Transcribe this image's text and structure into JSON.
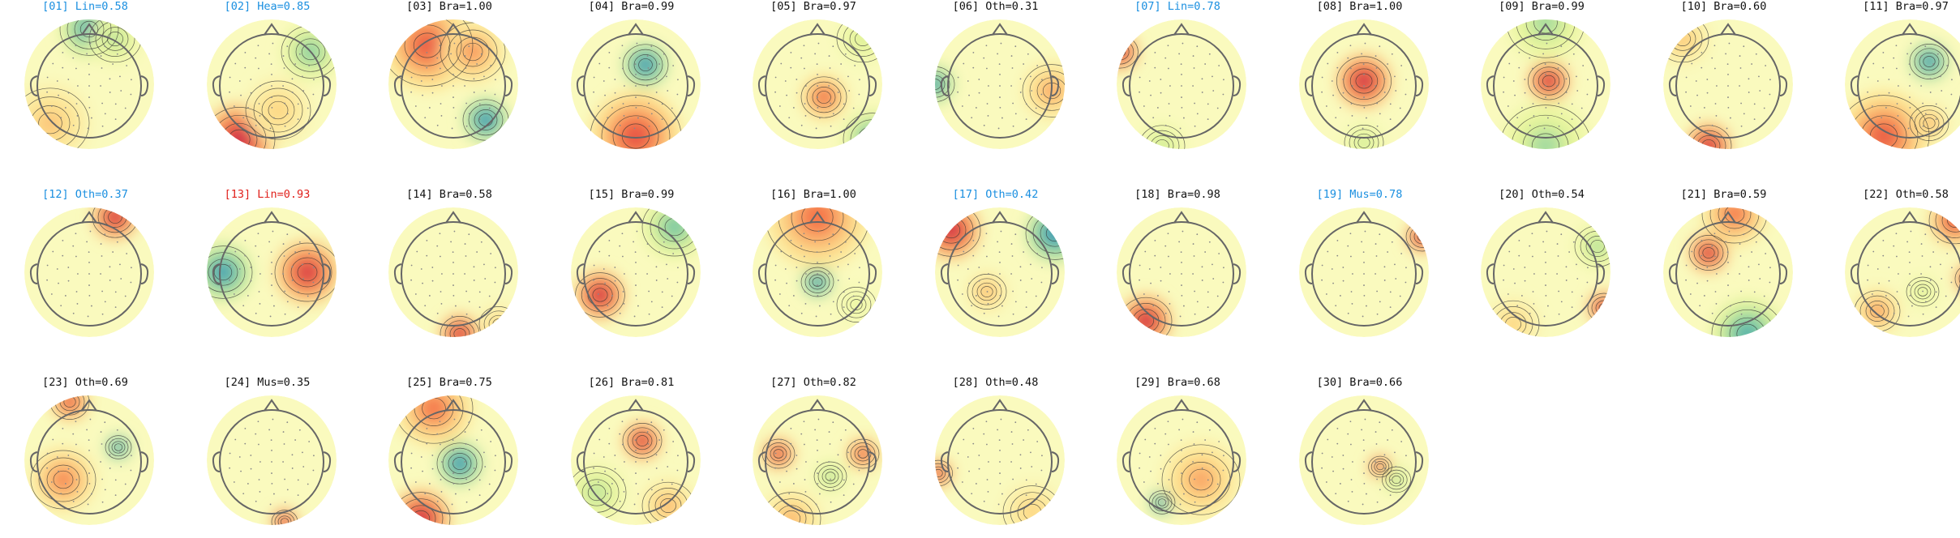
{
  "colors": {
    "normal": "#111111",
    "flagged": "#1a8fe0",
    "alert": "#e0201b"
  },
  "components": [
    {
      "label": "[01] Lin=0.58",
      "status": "flagged",
      "blobs": [
        [
          0,
          -0.85,
          0.45,
          -0.8
        ],
        [
          0.4,
          -0.7,
          0.4,
          -0.4
        ],
        [
          -0.6,
          0.6,
          0.6,
          0.35
        ]
      ]
    },
    {
      "label": "[02] Hea=0.85",
      "status": "flagged",
      "blobs": [
        [
          -0.5,
          0.85,
          0.55,
          1.0
        ],
        [
          0.6,
          -0.5,
          0.45,
          -0.55
        ],
        [
          0.1,
          0.4,
          0.5,
          0.3
        ]
      ]
    },
    {
      "label": "[03] Bra=1.00",
      "status": "normal",
      "blobs": [
        [
          0.5,
          0.55,
          0.35,
          -1.0
        ],
        [
          -0.4,
          -0.6,
          0.7,
          0.7
        ],
        [
          0.3,
          -0.5,
          0.5,
          0.5
        ]
      ]
    },
    {
      "label": "[04] Bra=0.99",
      "status": "normal",
      "blobs": [
        [
          0.15,
          -0.3,
          0.35,
          -1.0
        ],
        [
          0,
          0.8,
          0.7,
          0.75
        ]
      ]
    },
    {
      "label": "[05] Bra=0.97",
      "status": "normal",
      "blobs": [
        [
          0.1,
          0.2,
          0.35,
          0.7
        ],
        [
          0.85,
          0.85,
          0.45,
          -0.7
        ],
        [
          0.7,
          -0.7,
          0.4,
          -0.3
        ]
      ]
    },
    {
      "label": "[06] Oth=0.31",
      "status": "normal",
      "blobs": [
        [
          -1.0,
          0,
          0.3,
          -0.9
        ],
        [
          0.8,
          0.1,
          0.45,
          0.45
        ]
      ]
    },
    {
      "label": "[07] Lin=0.78",
      "status": "flagged",
      "blobs": [
        [
          -0.95,
          -0.5,
          0.28,
          1.0
        ],
        [
          -0.3,
          0.95,
          0.35,
          -0.35
        ]
      ]
    },
    {
      "label": "[08] Bra=1.00",
      "status": "normal",
      "blobs": [
        [
          0,
          -0.05,
          0.42,
          1.0
        ],
        [
          0,
          0.9,
          0.3,
          -0.35
        ]
      ]
    },
    {
      "label": "[09] Bra=0.99",
      "status": "normal",
      "blobs": [
        [
          0.05,
          -0.05,
          0.32,
          1.0
        ],
        [
          0,
          0.95,
          0.7,
          -0.45
        ],
        [
          0,
          -0.95,
          0.6,
          -0.45
        ]
      ]
    },
    {
      "label": "[10] Bra=0.60",
      "status": "normal",
      "blobs": [
        [
          -0.3,
          0.95,
          0.35,
          1.0
        ],
        [
          -0.7,
          -0.7,
          0.4,
          0.35
        ]
      ]
    },
    {
      "label": "[11] Bra=0.97",
      "status": "normal",
      "blobs": [
        [
          0.3,
          -0.35,
          0.3,
          -1.0
        ],
        [
          -0.4,
          0.8,
          0.7,
          0.7
        ],
        [
          0.3,
          0.6,
          0.3,
          0.4
        ]
      ]
    },
    {
      "label": "[12] Oth=0.37",
      "status": "flagged",
      "blobs": [
        [
          0.4,
          -0.85,
          0.35,
          1.0
        ]
      ]
    },
    {
      "label": "[13] Lin=0.93",
      "status": "alert",
      "blobs": [
        [
          0.55,
          0,
          0.5,
          0.9
        ],
        [
          -0.75,
          0,
          0.45,
          -0.9
        ]
      ]
    },
    {
      "label": "[14] Bra=0.58",
      "status": "normal",
      "blobs": [
        [
          0.1,
          0.95,
          0.3,
          1.0
        ],
        [
          0.7,
          0.8,
          0.3,
          0.3
        ]
      ]
    },
    {
      "label": "[15] Bra=0.99",
      "status": "normal",
      "blobs": [
        [
          -0.55,
          0.35,
          0.38,
          1.0
        ],
        [
          0.6,
          -0.7,
          0.5,
          -0.6
        ]
      ]
    },
    {
      "label": "[16] Bra=1.00",
      "status": "normal",
      "blobs": [
        [
          0,
          0.15,
          0.25,
          -1.0
        ],
        [
          0,
          -0.85,
          0.8,
          0.6
        ],
        [
          0.6,
          0.5,
          0.3,
          -0.2
        ]
      ]
    },
    {
      "label": "[17] Oth=0.42",
      "status": "flagged",
      "blobs": [
        [
          0.85,
          -0.6,
          0.45,
          -1.0
        ],
        [
          -0.75,
          -0.65,
          0.45,
          1.0
        ],
        [
          -0.2,
          0.3,
          0.3,
          0.4
        ]
      ]
    },
    {
      "label": "[18] Bra=0.98",
      "status": "normal",
      "blobs": [
        [
          -0.55,
          0.75,
          0.4,
          1.0
        ]
      ]
    },
    {
      "label": "[19] Mus=0.78",
      "status": "flagged",
      "blobs": [
        [
          0.9,
          -0.55,
          0.25,
          1.0
        ]
      ]
    },
    {
      "label": "[20] Oth=0.54",
      "status": "normal",
      "blobs": [
        [
          0.9,
          0.55,
          0.25,
          1.0
        ],
        [
          0.8,
          -0.4,
          0.35,
          -0.45
        ],
        [
          -0.5,
          0.8,
          0.4,
          0.3
        ]
      ]
    },
    {
      "label": "[21] Bra=0.59",
      "status": "normal",
      "blobs": [
        [
          -0.3,
          -0.3,
          0.3,
          1.0
        ],
        [
          0.3,
          0.95,
          0.55,
          -0.75
        ],
        [
          0.1,
          -0.9,
          0.5,
          0.6
        ]
      ]
    },
    {
      "label": "[22] Oth=0.58",
      "status": "normal",
      "blobs": [
        [
          0.95,
          0.1,
          0.25,
          1.0
        ],
        [
          0.7,
          -0.8,
          0.4,
          0.8
        ],
        [
          -0.5,
          0.6,
          0.35,
          0.5
        ],
        [
          0.2,
          0.3,
          0.25,
          -0.3
        ]
      ]
    },
    {
      "label": "[23] Oth=0.69",
      "status": "normal",
      "blobs": [
        [
          0.45,
          -0.2,
          0.2,
          -1.0
        ],
        [
          -0.3,
          -0.9,
          0.3,
          0.8
        ],
        [
          -0.4,
          0.3,
          0.5,
          0.55
        ]
      ]
    },
    {
      "label": "[24] Mus=0.35",
      "status": "normal",
      "blobs": [
        [
          0.2,
          0.95,
          0.2,
          1.0
        ]
      ]
    },
    {
      "label": "[25] Bra=0.75",
      "status": "normal",
      "blobs": [
        [
          0.1,
          0.05,
          0.35,
          -1.0
        ],
        [
          -0.5,
          0.9,
          0.45,
          1.0
        ],
        [
          -0.3,
          -0.8,
          0.6,
          0.6
        ]
      ]
    },
    {
      "label": "[26] Bra=0.81",
      "status": "normal",
      "blobs": [
        [
          0.1,
          -0.3,
          0.3,
          0.95
        ],
        [
          -0.6,
          0.5,
          0.45,
          -0.4
        ],
        [
          0.5,
          0.7,
          0.4,
          0.4
        ]
      ]
    },
    {
      "label": "[27] Oth=0.82",
      "status": "normal",
      "blobs": [
        [
          -0.6,
          -0.1,
          0.25,
          0.9
        ],
        [
          0.7,
          -0.1,
          0.25,
          0.8
        ],
        [
          0.2,
          0.25,
          0.25,
          -0.45
        ],
        [
          -0.4,
          0.9,
          0.45,
          0.4
        ]
      ]
    },
    {
      "label": "[28] Oth=0.48",
      "status": "normal",
      "blobs": [
        [
          -0.95,
          0.2,
          0.22,
          0.9
        ],
        [
          0.5,
          0.8,
          0.45,
          0.3
        ]
      ]
    },
    {
      "label": "[29] Bra=0.68",
      "status": "normal",
      "blobs": [
        [
          -0.3,
          0.65,
          0.2,
          -1.0
        ],
        [
          0.3,
          0.3,
          0.6,
          0.45
        ]
      ]
    },
    {
      "label": "[30] Bra=0.66",
      "status": "normal",
      "blobs": [
        [
          0.25,
          0.1,
          0.18,
          0.9
        ],
        [
          0.5,
          0.3,
          0.22,
          -0.45
        ]
      ]
    }
  ]
}
